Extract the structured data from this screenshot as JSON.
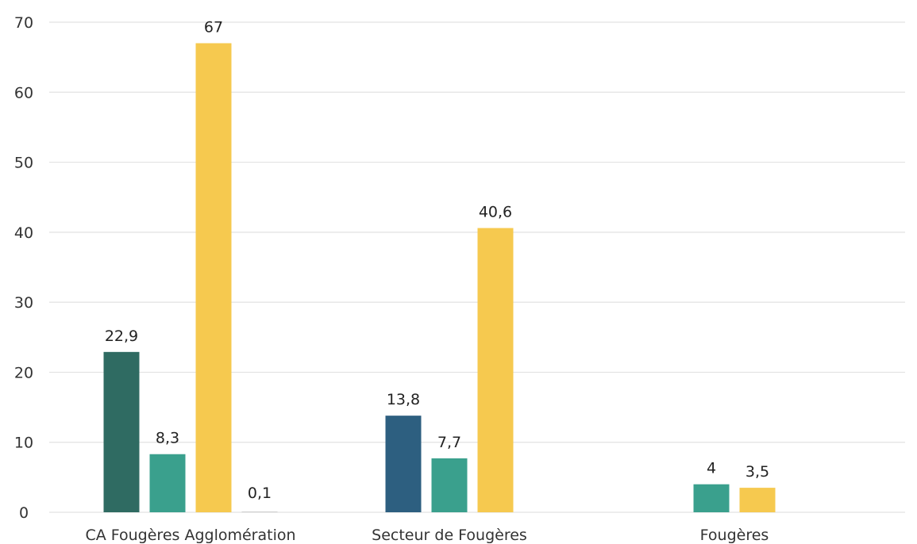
{
  "chart_data": {
    "type": "bar",
    "categories": [
      "CA Fougères Agglomération",
      "Secteur de Fougères",
      "Fougères"
    ],
    "series": [
      {
        "values": [
          22.9,
          13.8,
          null
        ],
        "labels": [
          "22,9",
          "13,8",
          ""
        ],
        "colors": [
          "#2f6b62",
          "#2d5f80",
          null
        ]
      },
      {
        "values": [
          8.3,
          7.7,
          4
        ],
        "labels": [
          "8,3",
          "7,7",
          "4"
        ],
        "colors": [
          "#3aa08d",
          "#3aa08d",
          "#3aa08d"
        ]
      },
      {
        "values": [
          67,
          40.6,
          3.5
        ],
        "labels": [
          "67",
          "40,6",
          "3,5"
        ],
        "colors": [
          "#f6c94f",
          "#f6c94f",
          "#f6c94f"
        ]
      },
      {
        "values": [
          0.1,
          null,
          null
        ],
        "labels": [
          "0,1",
          "",
          ""
        ],
        "colors": [
          "#c9c9c9",
          null,
          null
        ]
      }
    ],
    "yticks": [
      0,
      10,
      20,
      30,
      40,
      50,
      60,
      70
    ],
    "ylim": [
      0,
      70
    ],
    "grid": true,
    "title": "",
    "xlabel": "",
    "ylabel": ""
  }
}
